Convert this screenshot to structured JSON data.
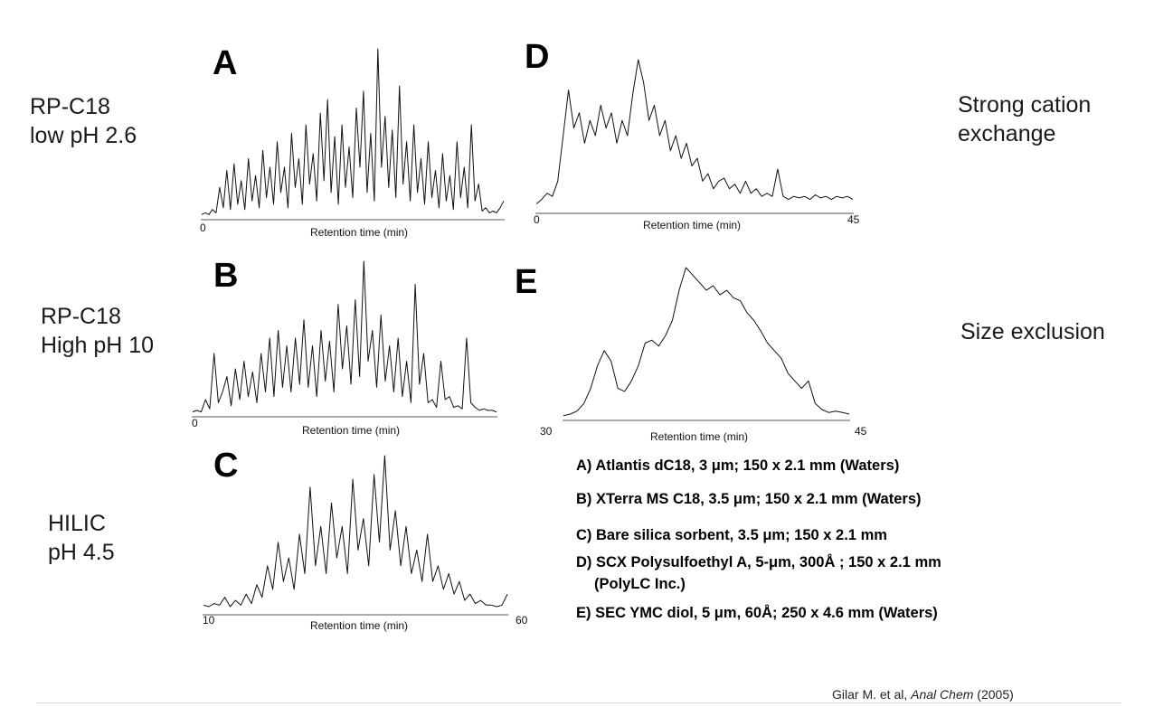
{
  "row_labels": {
    "a": {
      "line1": "RP-C18",
      "line2": "low pH 2.6"
    },
    "b": {
      "line1": "RP-C18",
      "line2": "High pH 10"
    },
    "c": {
      "line1": "HILIC",
      "line2": "pH 4.5"
    },
    "d": {
      "line1": "Strong cation",
      "line2": "exchange"
    },
    "e": {
      "line1": "Size exclusion"
    }
  },
  "panels": {
    "a": {
      "letter": "A",
      "xlabel": "Retention time (min)",
      "x_start": "0"
    },
    "b": {
      "letter": "B",
      "xlabel": "Retention time (min)",
      "x_start": "0"
    },
    "c": {
      "letter": "C",
      "xlabel": "Retention time (min)",
      "x_start": "10",
      "x_end": "60"
    },
    "d": {
      "letter": "D",
      "xlabel": "Retention time (min)",
      "x_start": "0",
      "x_end": "45"
    },
    "e": {
      "letter": "E",
      "xlabel": "Retention time (min)",
      "x_start": "30",
      "x_end": "45"
    }
  },
  "legend": {
    "a": "A) Atlantis dC18, 3 μm; 150 x 2.1 mm (Waters)",
    "b": "B) XTerra MS C18, 3.5 μm; 150 x 2.1 mm (Waters)",
    "c": "C) Bare silica sorbent, 3.5 μm; 150 x 2.1 mm",
    "d1": "D) SCX Polysulfoethyl A, 5-μm, 300Å ; 150 x 2.1 mm",
    "d2": "(PolyLC Inc.)",
    "e": "E) SEC YMC diol, 5 μm, 60Å; 250 x 4.6 mm (Waters)"
  },
  "citation": {
    "authors": "Gilar M. et al, ",
    "journal": "Anal Chem",
    "year": " (2005)"
  },
  "chart_data": [
    {
      "type": "line",
      "id": "a",
      "x_start": 0,
      "ylim": [
        0,
        1
      ],
      "y": [
        0.02,
        0.03,
        0.02,
        0.05,
        0.03,
        0.18,
        0.06,
        0.28,
        0.05,
        0.32,
        0.08,
        0.22,
        0.05,
        0.35,
        0.1,
        0.25,
        0.06,
        0.4,
        0.12,
        0.3,
        0.08,
        0.45,
        0.15,
        0.3,
        0.06,
        0.5,
        0.18,
        0.35,
        0.08,
        0.55,
        0.2,
        0.38,
        0.1,
        0.62,
        0.22,
        0.7,
        0.15,
        0.48,
        0.08,
        0.55,
        0.18,
        0.42,
        0.12,
        0.65,
        0.3,
        0.75,
        0.15,
        0.5,
        0.1,
        1.0,
        0.3,
        0.6,
        0.18,
        0.52,
        0.12,
        0.78,
        0.2,
        0.45,
        0.1,
        0.55,
        0.15,
        0.35,
        0.08,
        0.45,
        0.12,
        0.28,
        0.06,
        0.38,
        0.1,
        0.25,
        0.05,
        0.45,
        0.12,
        0.3,
        0.06,
        0.55,
        0.1,
        0.2,
        0.04,
        0.06,
        0.03,
        0.04,
        0.03,
        0.06,
        0.1
      ]
    },
    {
      "type": "line",
      "id": "b",
      "x_start": 0,
      "ylim": [
        0,
        1
      ],
      "y": [
        0.02,
        0.03,
        0.02,
        0.1,
        0.04,
        0.4,
        0.08,
        0.15,
        0.25,
        0.06,
        0.3,
        0.1,
        0.35,
        0.12,
        0.28,
        0.08,
        0.4,
        0.15,
        0.5,
        0.12,
        0.55,
        0.18,
        0.45,
        0.15,
        0.5,
        0.2,
        0.62,
        0.18,
        0.45,
        0.12,
        0.55,
        0.22,
        0.48,
        0.15,
        0.72,
        0.3,
        0.58,
        0.2,
        0.75,
        0.25,
        1.0,
        0.35,
        0.55,
        0.18,
        0.65,
        0.22,
        0.45,
        0.15,
        0.5,
        0.12,
        0.35,
        0.08,
        0.85,
        0.2,
        0.4,
        0.08,
        0.1,
        0.05,
        0.35,
        0.1,
        0.12,
        0.05,
        0.06,
        0.04,
        0.5,
        0.08,
        0.05,
        0.03,
        0.04,
        0.03,
        0.03,
        0.02
      ]
    },
    {
      "type": "line",
      "id": "c",
      "x_start": 10,
      "x_end": 60,
      "ylim": [
        0,
        1
      ],
      "y": [
        0.05,
        0.04,
        0.06,
        0.05,
        0.1,
        0.04,
        0.08,
        0.05,
        0.12,
        0.06,
        0.18,
        0.1,
        0.3,
        0.15,
        0.45,
        0.2,
        0.35,
        0.15,
        0.5,
        0.25,
        0.8,
        0.3,
        0.55,
        0.25,
        0.7,
        0.35,
        0.55,
        0.25,
        0.85,
        0.4,
        0.6,
        0.3,
        0.88,
        0.45,
        1.0,
        0.4,
        0.65,
        0.3,
        0.55,
        0.25,
        0.4,
        0.2,
        0.5,
        0.2,
        0.3,
        0.15,
        0.25,
        0.12,
        0.2,
        0.08,
        0.12,
        0.06,
        0.08,
        0.05,
        0.05,
        0.04,
        0.05,
        0.12
      ]
    },
    {
      "type": "line",
      "id": "d",
      "x_start": 0,
      "x_end": 45,
      "ylim": [
        0,
        1
      ],
      "y": [
        0.05,
        0.08,
        0.12,
        0.1,
        0.2,
        0.5,
        0.8,
        0.55,
        0.65,
        0.45,
        0.6,
        0.5,
        0.7,
        0.55,
        0.65,
        0.45,
        0.6,
        0.5,
        0.78,
        1.0,
        0.85,
        0.6,
        0.7,
        0.5,
        0.6,
        0.4,
        0.5,
        0.35,
        0.45,
        0.3,
        0.35,
        0.2,
        0.25,
        0.15,
        0.2,
        0.22,
        0.15,
        0.18,
        0.12,
        0.2,
        0.12,
        0.15,
        0.1,
        0.12,
        0.1,
        0.28,
        0.1,
        0.08,
        0.1,
        0.09,
        0.1,
        0.08,
        0.11,
        0.09,
        0.1,
        0.08,
        0.1,
        0.09,
        0.1,
        0.08
      ]
    },
    {
      "type": "line",
      "id": "e",
      "x_start": 30,
      "x_end": 45,
      "ylim": [
        0,
        1
      ],
      "y": [
        0.02,
        0.03,
        0.05,
        0.1,
        0.2,
        0.35,
        0.45,
        0.38,
        0.2,
        0.18,
        0.25,
        0.35,
        0.5,
        0.52,
        0.48,
        0.55,
        0.65,
        0.85,
        1.0,
        0.95,
        0.9,
        0.85,
        0.88,
        0.82,
        0.85,
        0.8,
        0.78,
        0.7,
        0.65,
        0.58,
        0.5,
        0.45,
        0.4,
        0.3,
        0.25,
        0.2,
        0.25,
        0.1,
        0.06,
        0.04,
        0.05,
        0.04,
        0.03
      ]
    }
  ]
}
